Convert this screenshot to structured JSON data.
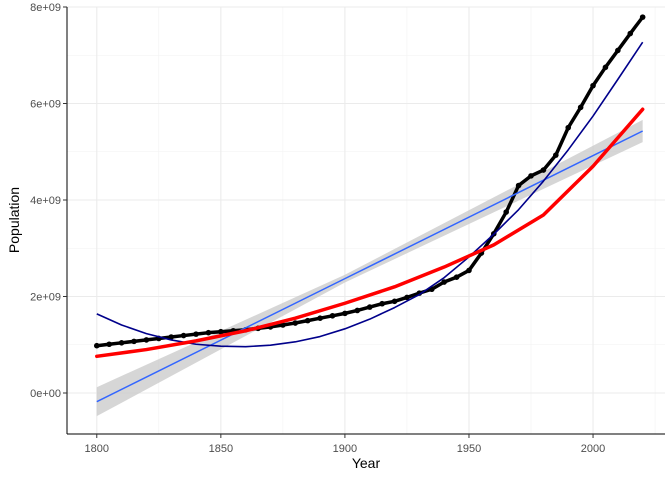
{
  "chart_data": {
    "type": "scatter",
    "xlabel": "Year",
    "ylabel": "Population",
    "xlim": [
      1788,
      2029
    ],
    "ylim": [
      -850000000,
      8000000000
    ],
    "x_ticks": [
      1800,
      1850,
      1900,
      1950,
      2000
    ],
    "x_tick_labels": [
      "1800",
      "1850",
      "1900",
      "1950",
      "2000"
    ],
    "y_ticks": [
      0,
      2000000000,
      4000000000,
      6000000000,
      8000000000
    ],
    "y_tick_labels": [
      "0e+00",
      "2e+09",
      "4e+09",
      "6e+09",
      "8e+09"
    ],
    "grid": true,
    "colors": {
      "points": "#000000",
      "linear_fit": "#3366ff",
      "confidence_band": "#c8c8c8",
      "cubic_fit": "#00008b",
      "quadratic_fit": "#ff0000"
    },
    "series": [
      {
        "kind": "points",
        "x": [
          1800,
          1805,
          1810,
          1815,
          1820,
          1825,
          1830,
          1835,
          1840,
          1845,
          1850,
          1855,
          1860,
          1865,
          1870,
          1875,
          1880,
          1885,
          1890,
          1895,
          1900,
          1905,
          1910,
          1915,
          1920,
          1925,
          1930,
          1935,
          1940,
          1945,
          1950,
          1955,
          1960,
          1965,
          1970,
          1975,
          1980,
          1985,
          1990,
          1995,
          2000,
          2005,
          2010,
          2015,
          2020
        ],
        "y": [
          980000000,
          1010000000,
          1040000000,
          1070000000,
          1100000000,
          1130000000,
          1160000000,
          1190000000,
          1220000000,
          1250000000,
          1270000000,
          1290000000,
          1310000000,
          1340000000,
          1370000000,
          1410000000,
          1450000000,
          1500000000,
          1550000000,
          1600000000,
          1650000000,
          1710000000,
          1780000000,
          1850000000,
          1900000000,
          1980000000,
          2070000000,
          2150000000,
          2300000000,
          2400000000,
          2540000000,
          2900000000,
          3300000000,
          3750000000,
          4300000000,
          4500000000,
          4620000000,
          4930000000,
          5500000000,
          5920000000,
          6370000000,
          6750000000,
          7100000000,
          7450000000,
          7790000000
        ]
      },
      {
        "kind": "linear_fit",
        "x": [
          1800,
          1900,
          2020
        ],
        "y": [
          -180000000,
          2370000000,
          5430000000
        ],
        "band_halfwidth": [
          300000000,
          80000000,
          230000000
        ]
      },
      {
        "kind": "cubic_fit",
        "x": [
          1800,
          1810,
          1820,
          1830,
          1840,
          1850,
          1860,
          1870,
          1880,
          1890,
          1900,
          1910,
          1920,
          1930,
          1940,
          1950,
          1960,
          1970,
          1980,
          1990,
          2000,
          2010,
          2020
        ],
        "y": [
          1640000000,
          1410000000,
          1230000000,
          1100000000,
          1010000000,
          970000000,
          960000000,
          990000000,
          1060000000,
          1170000000,
          1330000000,
          1530000000,
          1770000000,
          2040000000,
          2390000000,
          2820000000,
          3290000000,
          3800000000,
          4390000000,
          5040000000,
          5740000000,
          6500000000,
          7270000000
        ]
      },
      {
        "kind": "quadratic_fit",
        "x": [
          1800,
          1820,
          1840,
          1860,
          1880,
          1900,
          1920,
          1940,
          1960,
          1980,
          2000,
          2020
        ],
        "y": [
          760000000,
          900000000,
          1080000000,
          1290000000,
          1550000000,
          1860000000,
          2200000000,
          2610000000,
          3070000000,
          3690000000,
          4700000000,
          5880000000
        ]
      }
    ]
  }
}
